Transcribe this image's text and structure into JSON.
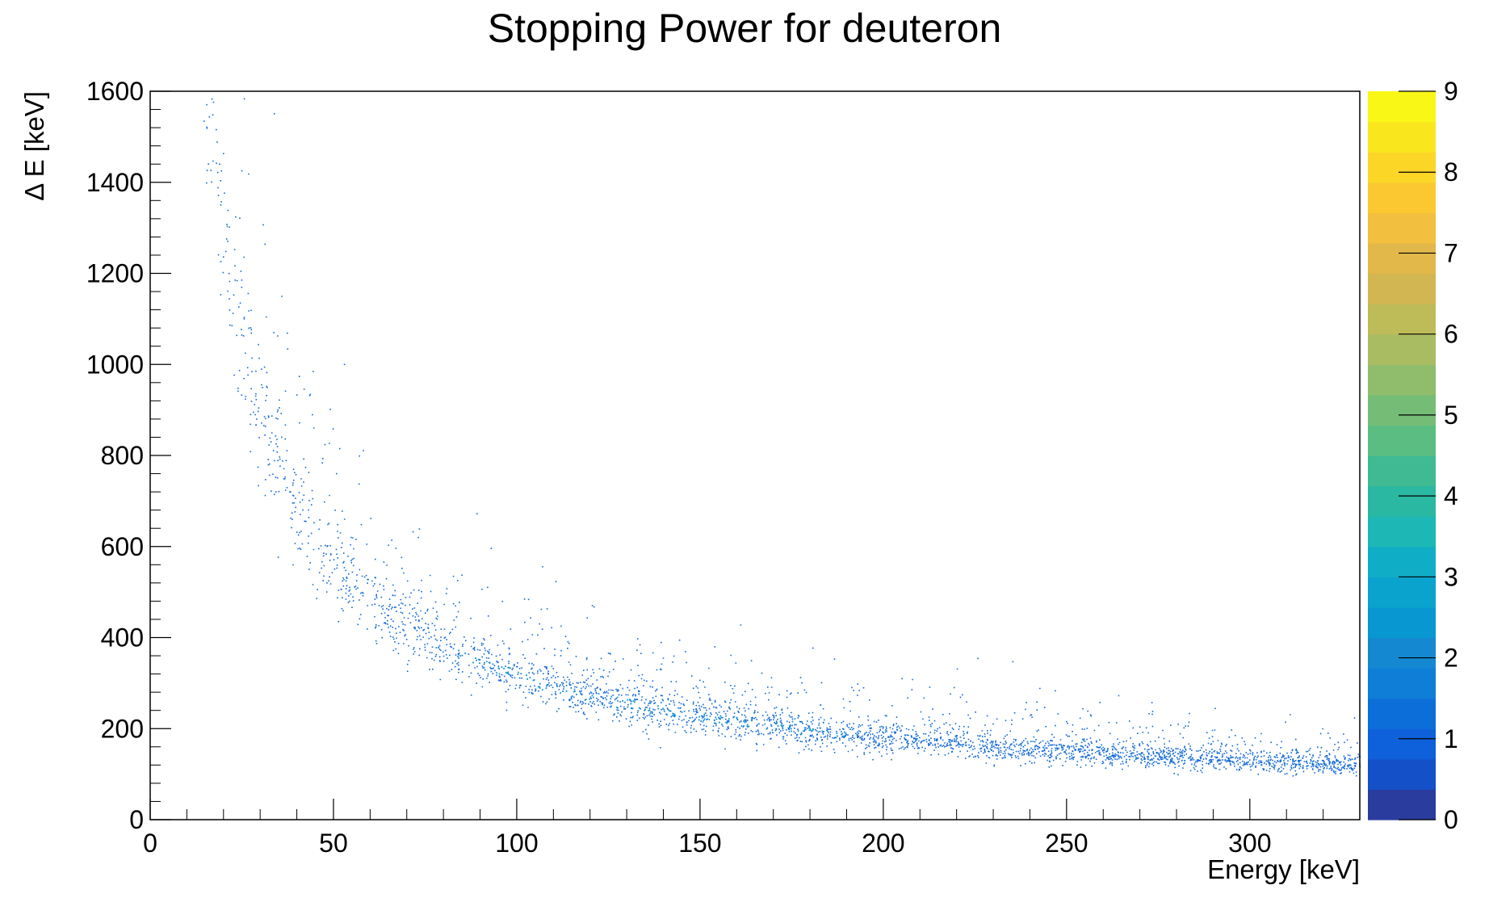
{
  "chart_data": {
    "type": "heatmap",
    "title": "Stopping Power for deuteron",
    "xlabel": "Energy [keV]",
    "ylabel": "Δ E [keV]",
    "xlim": [
      0,
      330
    ],
    "ylim": [
      0,
      1600
    ],
    "x_ticks": [
      0,
      50,
      100,
      150,
      200,
      250,
      300
    ],
    "y_ticks": [
      0,
      200,
      400,
      600,
      800,
      1000,
      1200,
      1400,
      1600
    ],
    "x_tick_labels": [
      "0",
      "50",
      "100",
      "150",
      "200",
      "250",
      "300"
    ],
    "y_tick_labels": [
      "0",
      "200",
      "400",
      "600",
      "800",
      "1000",
      "1200",
      "1400",
      "1600"
    ],
    "colorbar": {
      "range": [
        0,
        9
      ],
      "ticks": [
        0,
        1,
        2,
        3,
        4,
        5,
        6,
        7,
        8,
        9
      ],
      "tick_labels": [
        "0",
        "1",
        "2",
        "3",
        "4",
        "5",
        "6",
        "7",
        "8",
        "9"
      ],
      "colors": [
        "#2a3c9e",
        "#1450c8",
        "#0f60db",
        "#0c6fd9",
        "#0f7ed6",
        "#1489d2",
        "#0897d0",
        "#0aa3cd",
        "#10aec6",
        "#1db7b6",
        "#2bb8a3",
        "#40ba92",
        "#5cbd83",
        "#75bd77",
        "#90bd6c",
        "#a9bc62",
        "#bebb59",
        "#d2b652",
        "#e2b84b",
        "#f2bf3e",
        "#fbc832",
        "#fbd627",
        "#f9e61d",
        "#f8f716"
      ]
    },
    "series": [
      {
        "x": [
          15,
          20,
          25,
          30,
          35,
          40,
          45,
          50,
          60,
          70,
          80,
          90,
          100,
          110,
          120,
          130,
          140,
          150,
          175,
          200,
          225,
          250,
          275,
          300,
          330
        ],
        "y": [
          1600,
          1250,
          1020,
          880,
          770,
          690,
          630,
          570,
          490,
          430,
          385,
          345,
          315,
          290,
          270,
          255,
          240,
          225,
          200,
          180,
          165,
          150,
          140,
          130,
          120
        ]
      }
    ]
  }
}
